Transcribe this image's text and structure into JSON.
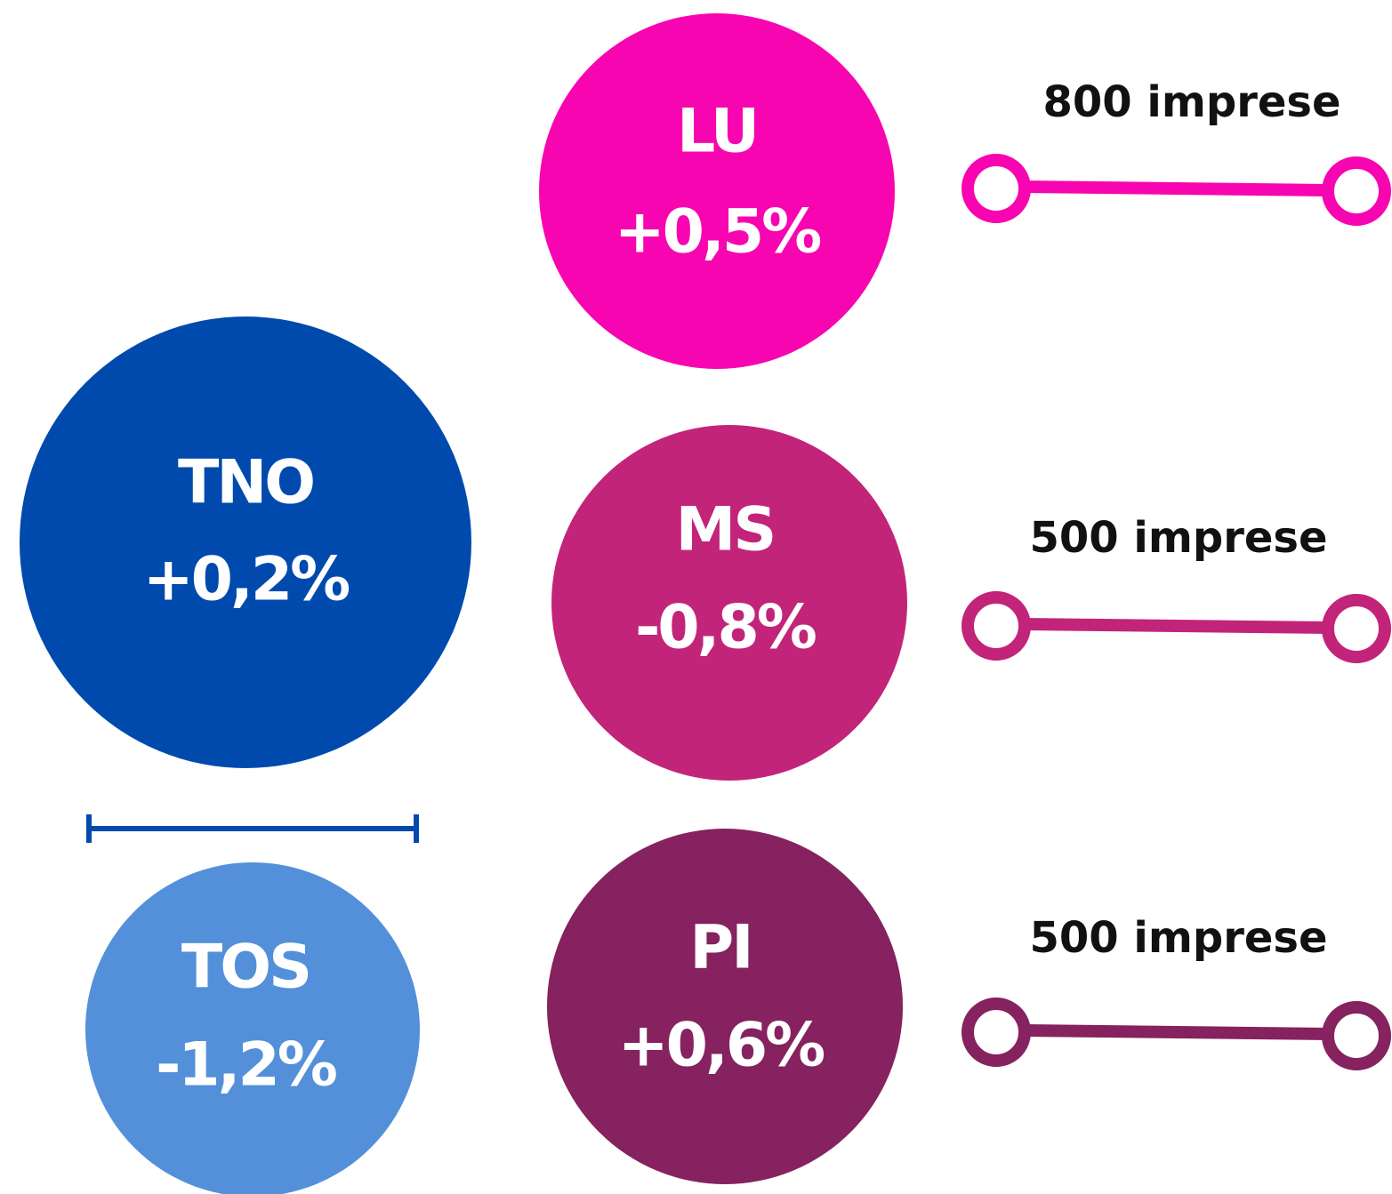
{
  "nodes": [
    {
      "label": "LU",
      "value": "+0,5%"
    },
    {
      "label": "TNO",
      "value": "+0,2%"
    },
    {
      "label": "MS",
      "value": "-0,8%"
    },
    {
      "label": "TOS",
      "value": "-1,2%"
    },
    {
      "label": "PI",
      "value": "+0,6%"
    }
  ],
  "connectors": [
    {
      "label": "800 imprese"
    },
    {
      "label": "500 imprese"
    },
    {
      "label": "500 imprese"
    }
  ]
}
